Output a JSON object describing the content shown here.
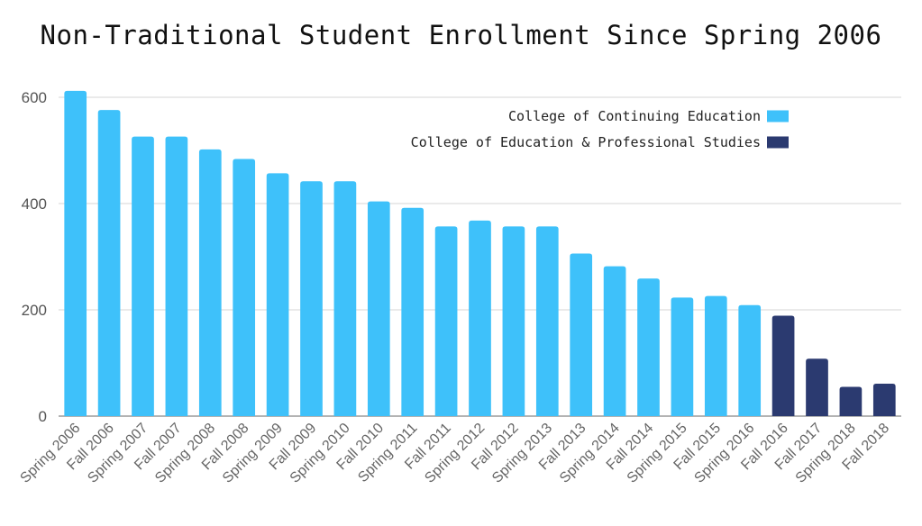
{
  "chart_data": {
    "type": "bar",
    "title": "Non-Traditional Student Enrollment Since Spring 2006",
    "xlabel": "",
    "ylabel": "",
    "ylim": [
      0,
      600
    ],
    "yticks": [
      0,
      200,
      400,
      600
    ],
    "grid": true,
    "legend_position": "top-right",
    "categories": [
      "Spring 2006",
      "Fall 2006",
      "Spring 2007",
      "Fall 2007",
      "Spring 2008",
      "Fall 2008",
      "Spring 2009",
      "Fall 2009",
      "Spring 2010",
      "Fall 2010",
      "Spring 2011",
      "Fall 2011",
      "Spring 2012",
      "Fall 2012",
      "Spring 2013",
      "Fall 2013",
      "Spring 2014",
      "Fall 2014",
      "Spring 2015",
      "Fall 2015",
      "Spring 2016",
      "Fall 2016",
      "Fall 2017",
      "Spring 2018",
      "Fall 2018"
    ],
    "series": [
      {
        "name": "College of Continuing Education",
        "color": "#3ec1fa",
        "values": [
          612,
          576,
          526,
          526,
          502,
          484,
          457,
          442,
          442,
          404,
          392,
          357,
          368,
          357,
          357,
          306,
          282,
          259,
          223,
          226,
          209,
          null,
          null,
          null,
          null
        ]
      },
      {
        "name": "College of Education & Professional Studies",
        "color": "#2b3a70",
        "values": [
          null,
          null,
          null,
          null,
          null,
          null,
          null,
          null,
          null,
          null,
          null,
          null,
          null,
          null,
          null,
          null,
          null,
          null,
          null,
          null,
          null,
          189,
          108,
          55,
          61
        ]
      }
    ]
  }
}
